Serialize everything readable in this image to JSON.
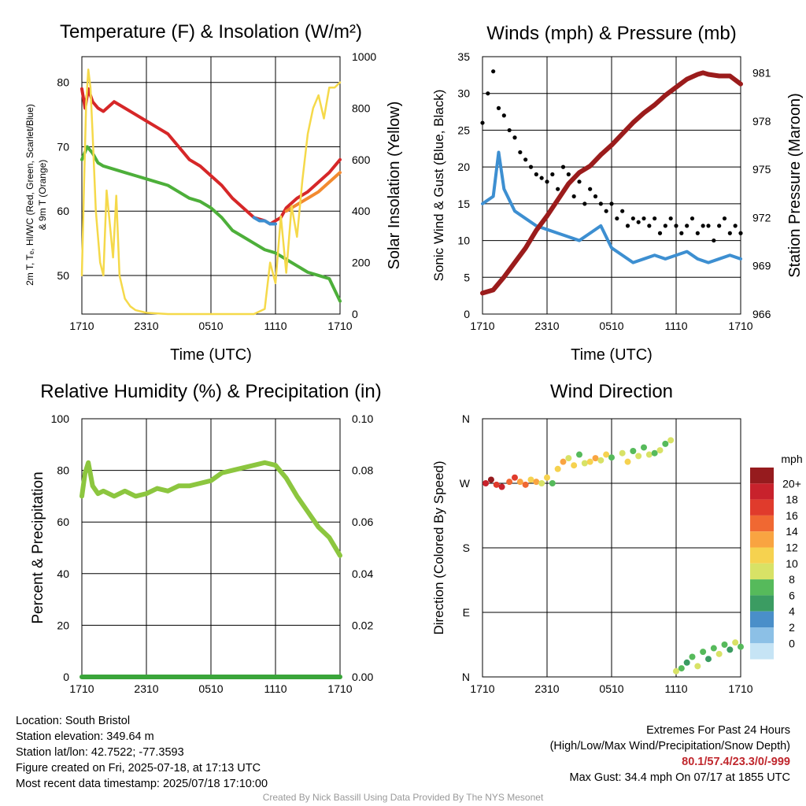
{
  "colors": {
    "red": "#d62728",
    "green": "#4daf3a",
    "scarlet": "#e66a1f",
    "blue": "#3d8fd1",
    "orange": "#f28a30",
    "yellow": "#f5d94a",
    "maroon": "#9b1c1c",
    "black": "#000000",
    "rh": "#8cc63f",
    "precip": "#3aa53a",
    "extremes": "#c0272d"
  },
  "chart_data": [
    {
      "id": "temp",
      "type": "line",
      "title": "Temperature (F) & Insolation (W/m²)",
      "xlabel": "Time (UTC)",
      "ylabel": "2m T, Tₑ, HI/WC (Red, Green, Scarlet/Blue)",
      "ylabel2": "& 9m T (Orange)",
      "ylabel_right": "Solar Insolation (Yellow)",
      "ylim": [
        44,
        84
      ],
      "y_ticks": [
        50,
        60,
        70,
        80
      ],
      "ylim_right": [
        0,
        1000
      ],
      "y_ticks_right": [
        0,
        200,
        400,
        600,
        800,
        1000
      ],
      "x_ticks": [
        "1710",
        "2310",
        "0510",
        "1110",
        "1710"
      ],
      "x_hours": [
        0,
        6,
        12,
        18,
        24
      ],
      "grid": true,
      "series": [
        {
          "name": "2m T",
          "color_key": "red",
          "axis": "left",
          "x": [
            0,
            0.3,
            0.6,
            1,
            1.5,
            2,
            3,
            4,
            5,
            6,
            7,
            8,
            9,
            10,
            11,
            12,
            13,
            14,
            15,
            16,
            17,
            17.5,
            18,
            18.5,
            19,
            20,
            21,
            22,
            23,
            24
          ],
          "y": [
            79,
            76,
            79,
            77,
            76,
            75.5,
            77,
            76,
            75,
            74,
            73,
            72,
            70,
            68,
            67,
            65.5,
            64,
            62,
            60.5,
            59,
            58.5,
            58,
            58.5,
            59,
            60.5,
            62,
            63,
            64.5,
            66,
            68
          ]
        },
        {
          "name": "9m T",
          "color_key": "orange",
          "axis": "left",
          "x": [
            19,
            20,
            21,
            22,
            23,
            24
          ],
          "y": [
            60,
            61,
            62,
            63,
            64.5,
            66
          ]
        },
        {
          "name": "Td",
          "color_key": "green",
          "axis": "left",
          "x": [
            0,
            0.5,
            1,
            1.5,
            2,
            3,
            4,
            5,
            6,
            7,
            8,
            9,
            10,
            11,
            12,
            13,
            14,
            15,
            16,
            17,
            18,
            19,
            20,
            21,
            22,
            23,
            24
          ],
          "y": [
            68,
            70,
            69,
            67.5,
            67,
            66.5,
            66,
            65.5,
            65,
            64.5,
            64,
            63,
            62,
            61.5,
            60.5,
            59,
            57,
            56,
            55,
            54,
            53.5,
            52.5,
            51.5,
            50.5,
            50,
            49.5,
            46
          ]
        },
        {
          "name": "HI/WC",
          "color_key": "blue",
          "axis": "left",
          "x": [
            16,
            16.5,
            17,
            17.5,
            18
          ],
          "y": [
            59,
            58.5,
            58.5,
            58,
            58
          ]
        },
        {
          "name": "Insolation",
          "color_key": "yellow",
          "axis": "right",
          "x": [
            0,
            0.2,
            0.4,
            0.6,
            0.8,
            1,
            1.3,
            1.7,
            2,
            2.3,
            2.6,
            2.9,
            3.2,
            3.5,
            4,
            4.5,
            5,
            6,
            8,
            10,
            12,
            14,
            15,
            16,
            17,
            17.5,
            18,
            18.5,
            19,
            19.5,
            20,
            20.5,
            21,
            21.5,
            22,
            22.5,
            23,
            23.5,
            24
          ],
          "y": [
            150,
            500,
            820,
            950,
            880,
            700,
            400,
            200,
            150,
            480,
            350,
            220,
            460,
            150,
            60,
            30,
            15,
            5,
            0,
            0,
            0,
            0,
            0,
            0,
            20,
            200,
            120,
            380,
            160,
            420,
            300,
            520,
            700,
            800,
            850,
            760,
            880,
            880,
            900
          ]
        }
      ]
    },
    {
      "id": "wind",
      "type": "line",
      "title": "Winds (mph) & Pressure (mb)",
      "xlabel": "Time (UTC)",
      "ylabel": "Sonic Wind & Gust (Blue, Black)",
      "ylabel_right": "Station Pressure (Maroon)",
      "ylim": [
        0,
        35
      ],
      "y_ticks": [
        0,
        5,
        10,
        15,
        20,
        25,
        30,
        35
      ],
      "ylim_right": [
        966,
        982
      ],
      "y_ticks_right": [
        966,
        969,
        972,
        975,
        978,
        981
      ],
      "x_ticks": [
        "1710",
        "2310",
        "0510",
        "1110",
        "1710"
      ],
      "x_hours": [
        0,
        6,
        12,
        18,
        24
      ],
      "grid": true,
      "series": [
        {
          "name": "Sonic Wind",
          "color_key": "blue",
          "axis": "left",
          "x": [
            0,
            1,
            1.5,
            2,
            3,
            4,
            5,
            6,
            7,
            8,
            9,
            10,
            11,
            12,
            13,
            14,
            15,
            16,
            17,
            18,
            19,
            20,
            21,
            22,
            23,
            24
          ],
          "y": [
            15,
            16,
            22,
            17,
            14,
            13,
            12,
            11.5,
            11,
            10.5,
            10,
            11,
            12,
            9,
            8,
            7,
            7.5,
            8,
            7.5,
            8,
            8.5,
            7.5,
            7,
            7.5,
            8,
            7.5
          ]
        },
        {
          "name": "Gust",
          "color_key": "black",
          "axis": "left",
          "style": "points",
          "x": [
            0,
            0.5,
            1,
            1.5,
            2,
            2.5,
            3,
            3.5,
            4,
            4.5,
            5,
            5.5,
            6,
            6.5,
            7,
            7.5,
            8,
            8.5,
            9,
            9.5,
            10,
            10.5,
            11,
            11.5,
            12,
            12.5,
            13,
            13.5,
            14,
            14.5,
            15,
            15.5,
            16,
            16.5,
            17,
            17.5,
            18,
            18.5,
            19,
            19.5,
            20,
            20.5,
            21,
            21.5,
            22,
            22.5,
            23,
            23.5,
            24
          ],
          "y": [
            26,
            30,
            33,
            28,
            27,
            25,
            24,
            22,
            21,
            20,
            19,
            18.5,
            18,
            19,
            17,
            20,
            19,
            16,
            18,
            15,
            17,
            16,
            15,
            14,
            15,
            13,
            14,
            12,
            13,
            12.5,
            13,
            12,
            13,
            11,
            12,
            13,
            12,
            11,
            12,
            13,
            11,
            12,
            12,
            10,
            12,
            13,
            11,
            12,
            11
          ]
        },
        {
          "name": "Station Pressure",
          "color_key": "maroon",
          "axis": "right",
          "x": [
            0,
            1,
            2,
            3,
            4,
            5,
            6,
            7,
            8,
            9,
            10,
            11,
            12,
            13,
            14,
            15,
            16,
            17,
            18,
            19,
            20,
            20.5,
            21,
            22,
            23,
            24
          ],
          "y": [
            967.3,
            967.5,
            968.3,
            969.2,
            970.1,
            971.2,
            972.1,
            973.1,
            974.1,
            974.8,
            975.2,
            975.9,
            976.5,
            977.2,
            977.9,
            978.5,
            979.0,
            979.6,
            980.1,
            980.6,
            980.9,
            981.0,
            980.9,
            980.8,
            980.8,
            980.3
          ]
        }
      ]
    },
    {
      "id": "rh",
      "type": "line",
      "title": "Relative Humidity (%) & Precipitation (in)",
      "xlabel": "",
      "ylabel": "Percent & Precipitation",
      "ylim": [
        0,
        100
      ],
      "y_ticks": [
        0,
        20,
        40,
        60,
        80,
        100
      ],
      "ylim_right": [
        0,
        0.1
      ],
      "y_ticks_right": [
        "0.00",
        "0.02",
        "0.04",
        "0.06",
        "0.08",
        "0.10"
      ],
      "x_ticks": [
        "1710",
        "2310",
        "0510",
        "1110",
        "1710"
      ],
      "x_hours": [
        0,
        6,
        12,
        18,
        24
      ],
      "grid": true,
      "series": [
        {
          "name": "RH",
          "color_key": "rh",
          "axis": "left",
          "x": [
            0,
            0.3,
            0.6,
            1,
            1.5,
            2,
            3,
            4,
            5,
            6,
            7,
            8,
            9,
            10,
            11,
            12,
            13,
            14,
            15,
            16,
            17,
            18,
            19,
            20,
            21,
            22,
            23,
            24
          ],
          "y": [
            70,
            79,
            83,
            74,
            71,
            72,
            70,
            72,
            70,
            71,
            73,
            72,
            74,
            74,
            75,
            76,
            79,
            80,
            81,
            82,
            83,
            82,
            77,
            70,
            64,
            58,
            54,
            47
          ]
        },
        {
          "name": "Precipitation",
          "color_key": "precip",
          "axis": "right",
          "x": [
            0,
            24
          ],
          "y": [
            0,
            0
          ]
        }
      ]
    },
    {
      "id": "dir",
      "type": "scatter",
      "title": "Wind Direction",
      "xlabel": "",
      "ylabel": "Direction (Colored By Speed)",
      "y_ticks": [
        "N",
        "E",
        "S",
        "W",
        "N"
      ],
      "x_ticks": [
        "1710",
        "2310",
        "0510",
        "1110",
        "1710"
      ],
      "x_hours": [
        0,
        6,
        12,
        18,
        24
      ],
      "grid": true,
      "legend_title": "mph",
      "legend_labels": [
        "20+",
        "18",
        "16",
        "14",
        "12",
        "10",
        "8",
        "6",
        "4",
        "2",
        "0"
      ],
      "legend_colors": [
        "#961b1e",
        "#c8222c",
        "#e03b2c",
        "#f06832",
        "#f9a441",
        "#f6d24f",
        "#d8e266",
        "#56ba5b",
        "#3b9c62",
        "#4a8fc9",
        "#8cc0e6",
        "#c6e4f5"
      ],
      "x": [
        0.3,
        0.8,
        1.3,
        1.8,
        2.5,
        3,
        3.5,
        4,
        4.5,
        5,
        5.5,
        6,
        6.5,
        7,
        7.5,
        8,
        8.5,
        9,
        9.5,
        10,
        10.5,
        11,
        11.5,
        12,
        13,
        13.5,
        14,
        14.5,
        15,
        15.5,
        16,
        16.5,
        17,
        17.5,
        18,
        18.5,
        19,
        19.5,
        20,
        20.5,
        21,
        21.5,
        22,
        22.5,
        23,
        23.5,
        24
      ],
      "y": [
        270,
        275,
        268,
        265,
        272,
        278,
        272,
        268,
        275,
        272,
        270,
        278,
        270,
        290,
        300,
        305,
        295,
        310,
        298,
        300,
        305,
        302,
        310,
        306,
        312,
        300,
        315,
        308,
        320,
        310,
        312,
        316,
        325,
        330,
        8,
        12,
        20,
        28,
        15,
        35,
        25,
        40,
        32,
        45,
        38,
        48,
        42
      ],
      "speed": [
        18,
        20,
        16,
        18,
        14,
        16,
        12,
        14,
        10,
        12,
        8,
        10,
        6,
        10,
        12,
        8,
        10,
        6,
        8,
        10,
        12,
        8,
        10,
        6,
        8,
        10,
        6,
        8,
        6,
        8,
        6,
        8,
        6,
        8,
        8,
        6,
        4,
        6,
        8,
        6,
        4,
        6,
        8,
        6,
        4,
        8,
        6
      ]
    }
  ],
  "info": {
    "location": "Location: South Bristol",
    "elevation": "Station elevation: 349.64 m",
    "latlon": "Station lat/lon: 42.7522; -77.3593",
    "created": "Figure created on Fri, 2025-07-18, at 17:13 UTC",
    "recent": "Most recent data timestamp: 2025/07/18 17:10:00"
  },
  "extremes": {
    "title": "Extremes For Past 24 Hours",
    "subtitle": "(High/Low/Max Wind/Precipitation/Snow Depth)",
    "values": "80.1/57.4/23.3/0/-999",
    "max_gust": "Max Gust: 34.4 mph On 07/17 at 1855 UTC"
  },
  "credit": "Created By Nick Bassill Using Data Provided By The NYS Mesonet"
}
